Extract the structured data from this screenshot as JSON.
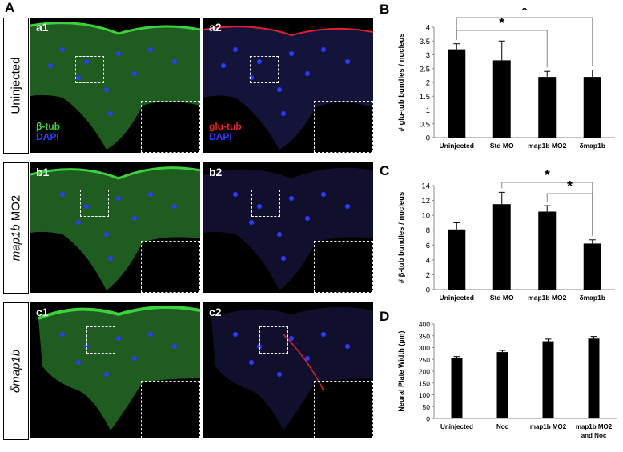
{
  "figure": {
    "panel_letters": {
      "A": "A",
      "B": "B",
      "C": "C",
      "D": "D"
    },
    "row_labels": [
      "Uninjected",
      "map1b MO2",
      "δmap1b"
    ],
    "row_label_map1b_italic": "map1b",
    "row_label_map1b_rest": " MO2",
    "image_tags": [
      "a1",
      "a2",
      "b1",
      "b2",
      "c1",
      "c2"
    ],
    "legend_left": {
      "line1": "β-tub",
      "line2": "DAPI"
    },
    "legend_right": {
      "line1": "glu-tub",
      "line2": "DAPI"
    },
    "colors": {
      "green": "#3cd23c",
      "red": "#e0202a",
      "blue": "#2a3cff",
      "black": "#000000"
    }
  },
  "chart_data": [
    {
      "type": "bar",
      "panel": "B",
      "categories": [
        "Uninjected",
        "Std MO",
        "map1b MO2",
        "δmap1b"
      ],
      "values": [
        3.2,
        2.8,
        2.2,
        2.2
      ],
      "errors": [
        0.2,
        0.7,
        0.2,
        0.25
      ],
      "ylabel": "# glu-tub bundles / nucleus",
      "ylim": [
        0,
        4
      ],
      "yticks": [
        "0",
        "0.5",
        "1",
        "1.5",
        "2",
        "2.5",
        "3",
        "3.5",
        "4"
      ],
      "significance": [
        {
          "from": "Uninjected",
          "to": "map1b MO2",
          "label": "*"
        },
        {
          "from": "Uninjected",
          "to": "δmap1b",
          "label": "*"
        }
      ]
    },
    {
      "type": "bar",
      "panel": "C",
      "categories": [
        "Uninjected",
        "Std MO",
        "map1b MO2",
        "δmap1b"
      ],
      "values": [
        8.1,
        11.5,
        10.5,
        6.2
      ],
      "errors": [
        0.9,
        1.6,
        0.8,
        0.5
      ],
      "ylabel": "# β-tub bundles / nucleus",
      "ylim": [
        0,
        14
      ],
      "yticks": [
        "0",
        "2",
        "4",
        "6",
        "8",
        "10",
        "12",
        "14"
      ],
      "significance": [
        {
          "from": "Std MO",
          "to": "δmap1b",
          "label": "*"
        },
        {
          "from": "map1b MO2",
          "to": "δmap1b",
          "label": "*"
        }
      ]
    },
    {
      "type": "bar",
      "panel": "D",
      "categories": [
        "Uninjected",
        "Noc",
        "map1b MO2",
        "map1b MO2 and Noc"
      ],
      "category_lines": [
        [
          "Uninjected"
        ],
        [
          "Noc"
        ],
        [
          "map1b MO2"
        ],
        [
          "map1b MO2",
          "and Noc"
        ]
      ],
      "values": [
        256,
        281,
        327,
        338
      ],
      "errors": [
        6,
        7,
        9,
        9
      ],
      "ylabel": "Neural Plate Width (µm)",
      "ylim": [
        0,
        400
      ],
      "yticks": [
        "0",
        "50",
        "100",
        "150",
        "200",
        "250",
        "300",
        "350",
        "400"
      ]
    }
  ]
}
